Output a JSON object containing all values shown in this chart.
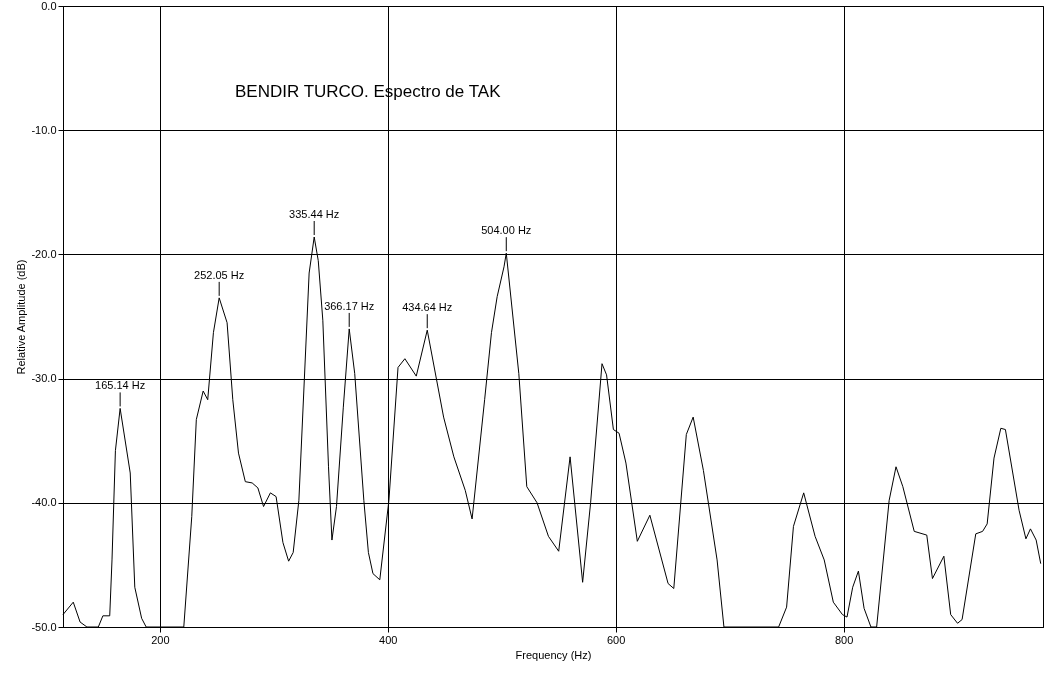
{
  "chart_data": {
    "type": "line",
    "title": "BENDIR TURCO. Espectro de TAK",
    "xlabel": "Frequency (Hz)",
    "ylabel": "Relative Amplitude (dB)",
    "xlim": [
      115,
      975
    ],
    "ylim": [
      -50,
      0
    ],
    "xticks": [
      200,
      400,
      600,
      800
    ],
    "yticks": [
      {
        "value": 0,
        "label": "0.0"
      },
      {
        "value": -10,
        "label": "-10.0"
      },
      {
        "value": -20,
        "label": "-20.0"
      },
      {
        "value": -30,
        "label": "-30.0"
      },
      {
        "value": -40,
        "label": "-40.0"
      },
      {
        "value": -50,
        "label": "-50.0"
      }
    ],
    "grid": true,
    "marker": "none",
    "line_style": "solid",
    "series": [
      {
        "color": "#000000",
        "x": [
          115,
          124,
          130,
          136,
          146,
          150,
          156,
          158,
          161,
          165.14,
          174,
          178,
          184,
          188,
          221,
          228,
          232,
          238,
          242,
          247,
          252.05,
          259,
          264,
          269,
          275,
          281,
          286,
          291,
          297,
          302,
          308,
          313,
          317,
          322,
          331,
          335.44,
          339,
          343,
          348,
          351,
          355,
          361,
          366.17,
          371,
          379,
          383,
          387,
          393,
          401,
          409,
          415,
          425,
          434.64,
          449,
          458,
          468,
          474,
          485,
          491,
          496,
          502,
          504.0,
          515,
          522,
          531,
          541,
          550,
          560,
          571,
          578,
          588,
          592,
          598,
          603,
          609,
          619,
          630,
          646,
          651,
          662,
          668,
          677,
          689,
          695,
          743,
          750,
          756,
          765,
          775,
          783,
          791,
          799,
          803,
          808,
          813,
          818,
          824,
          829,
          840,
          846,
          852,
          862,
          873,
          878,
          888,
          894,
          900,
          904,
          916,
          922,
          926,
          932,
          938,
          942,
          954,
          960,
          964,
          969,
          973
        ],
        "values": [
          -49.0,
          -48.0,
          -49.6,
          -50.0,
          -50.0,
          -49.1,
          -49.1,
          -44.6,
          -35.8,
          -32.4,
          -37.6,
          -46.8,
          -49.3,
          -50.0,
          -50.0,
          -41.1,
          -33.3,
          -31.0,
          -31.7,
          -26.3,
          -23.5,
          -25.5,
          -31.7,
          -36.0,
          -38.3,
          -38.4,
          -38.8,
          -40.3,
          -39.2,
          -39.5,
          -43.2,
          -44.7,
          -44.0,
          -39.8,
          -21.5,
          -18.6,
          -20.5,
          -25.3,
          -37.1,
          -43.0,
          -40.3,
          -32.3,
          -26.0,
          -29.6,
          -39.8,
          -44.0,
          -45.7,
          -46.2,
          -39.8,
          -29.1,
          -28.4,
          -29.8,
          -26.1,
          -33.1,
          -36.3,
          -39.0,
          -41.3,
          -31.7,
          -26.3,
          -23.4,
          -21.0,
          -19.9,
          -29.6,
          -38.7,
          -40.0,
          -42.7,
          -43.9,
          -36.3,
          -46.4,
          -40.0,
          -28.8,
          -29.7,
          -34.1,
          -34.4,
          -36.8,
          -43.1,
          -41.0,
          -46.5,
          -46.9,
          -34.5,
          -33.1,
          -37.4,
          -44.6,
          -50.0,
          -50.0,
          -48.4,
          -41.9,
          -39.2,
          -42.7,
          -44.6,
          -48.0,
          -49.0,
          -49.2,
          -46.8,
          -45.5,
          -48.5,
          -50.0,
          -50.0,
          -39.8,
          -37.1,
          -38.7,
          -42.3,
          -42.6,
          -46.1,
          -44.3,
          -49.0,
          -49.7,
          -49.4,
          -42.5,
          -42.3,
          -41.7,
          -36.4,
          -34.0,
          -34.1,
          -40.6,
          -42.9,
          -42.1,
          -43.0,
          -44.9
        ]
      }
    ],
    "annotations": [
      {
        "text": "165.14 Hz",
        "x": 165.14,
        "y": -32.4
      },
      {
        "text": "252.05 Hz",
        "x": 252.05,
        "y": -23.5
      },
      {
        "text": "335.44 Hz",
        "x": 335.44,
        "y": -18.6
      },
      {
        "text": "366.17 Hz",
        "x": 366.17,
        "y": -26.0
      },
      {
        "text": "434.64 Hz",
        "x": 434.64,
        "y": -26.1
      },
      {
        "text": "504.00 Hz",
        "x": 504.0,
        "y": -19.9
      }
    ]
  }
}
